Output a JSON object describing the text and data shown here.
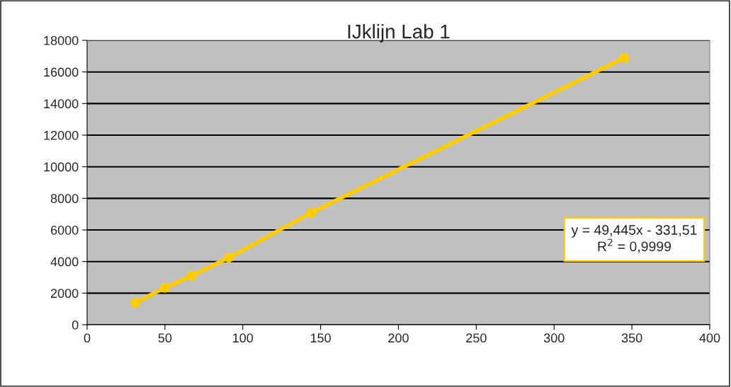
{
  "chart_data": {
    "type": "line",
    "title": "IJklijn Lab 1",
    "x": [
      31,
      50,
      67,
      91,
      144,
      345
    ],
    "series": [
      {
        "color": "#ffcc00",
        "values": [
          1400,
          2350,
          3100,
          4250,
          7100,
          16900
        ]
      }
    ],
    "xlim": [
      0,
      400
    ],
    "xticks": [
      0,
      50,
      100,
      150,
      200,
      250,
      300,
      350,
      400
    ],
    "ylim": [
      0,
      18000
    ],
    "yticks": [
      0,
      2000,
      4000,
      6000,
      8000,
      10000,
      12000,
      14000,
      16000,
      18000
    ],
    "grid": "y",
    "marker": "circle",
    "line_style": "solid",
    "legend": false,
    "annotations": [
      "y = 49,445x - 331,51\nR$^{2}$ = 0,9999"
    ]
  }
}
